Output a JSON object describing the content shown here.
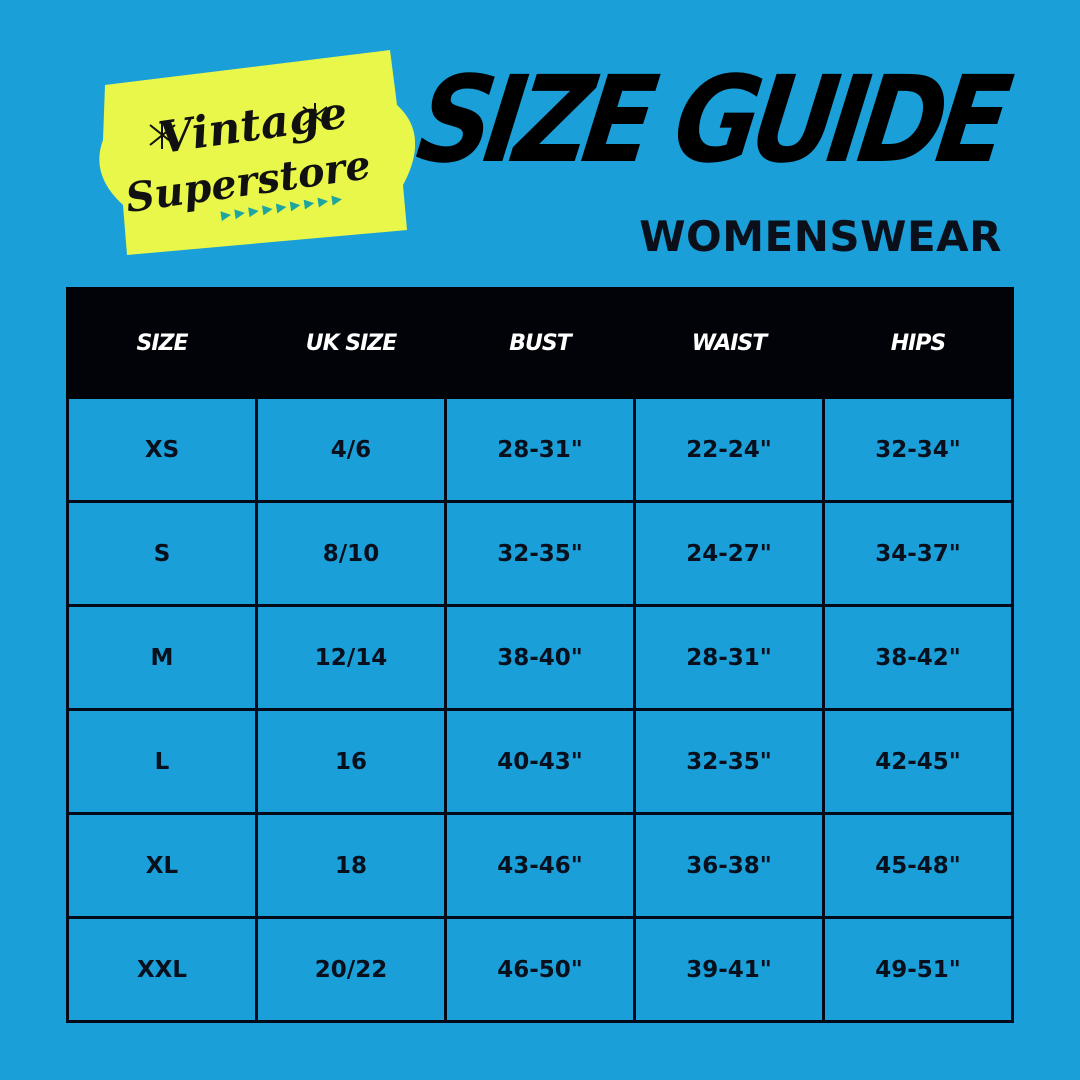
{
  "logo": {
    "line1": "Vintage",
    "line2": "Superstore",
    "badge_color": "#e8f74a",
    "accent_color": "#1fa5a0"
  },
  "header": {
    "title": "SIZE GUIDE",
    "subtitle": "WOMENSWEAR"
  },
  "colors": {
    "background": "#1b9fd8",
    "header_row": "#020308"
  },
  "table": {
    "columns": [
      "SIZE",
      "UK SIZE",
      "BUST",
      "WAIST",
      "HIPS"
    ],
    "rows": [
      [
        "XS",
        "4/6",
        "28-31\"",
        "22-24\"",
        "32-34\""
      ],
      [
        "S",
        "8/10",
        "32-35\"",
        "24-27\"",
        "34-37\""
      ],
      [
        "M",
        "12/14",
        "38-40\"",
        "28-31\"",
        "38-42\""
      ],
      [
        "L",
        "16",
        "40-43\"",
        "32-35\"",
        "42-45\""
      ],
      [
        "XL",
        "18",
        "43-46\"",
        "36-38\"",
        "45-48\""
      ],
      [
        "XXL",
        "20/22",
        "46-50\"",
        "39-41\"",
        "49-51\""
      ]
    ]
  }
}
